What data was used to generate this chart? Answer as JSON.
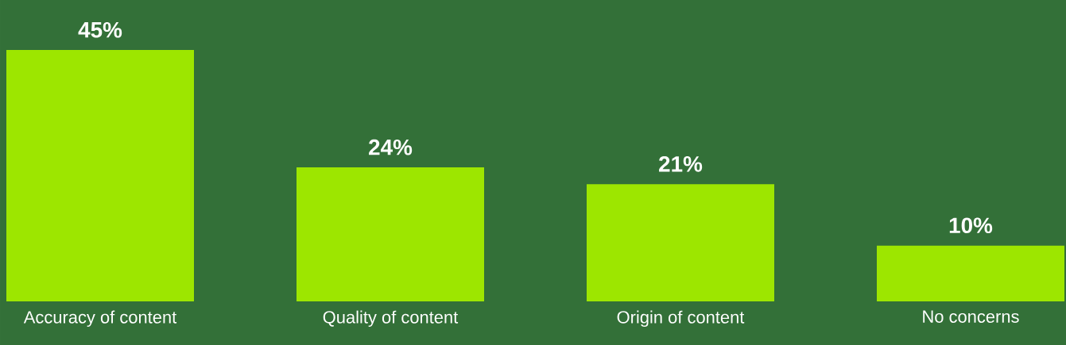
{
  "chart_data": {
    "type": "bar",
    "categories": [
      "Accuracy of content",
      "Quality of content",
      "Origin of content",
      "No concerns"
    ],
    "values": [
      45,
      24,
      21,
      10
    ],
    "value_labels": [
      "45%",
      "24%",
      "21%",
      "10%"
    ],
    "color": "#9de600"
  }
}
